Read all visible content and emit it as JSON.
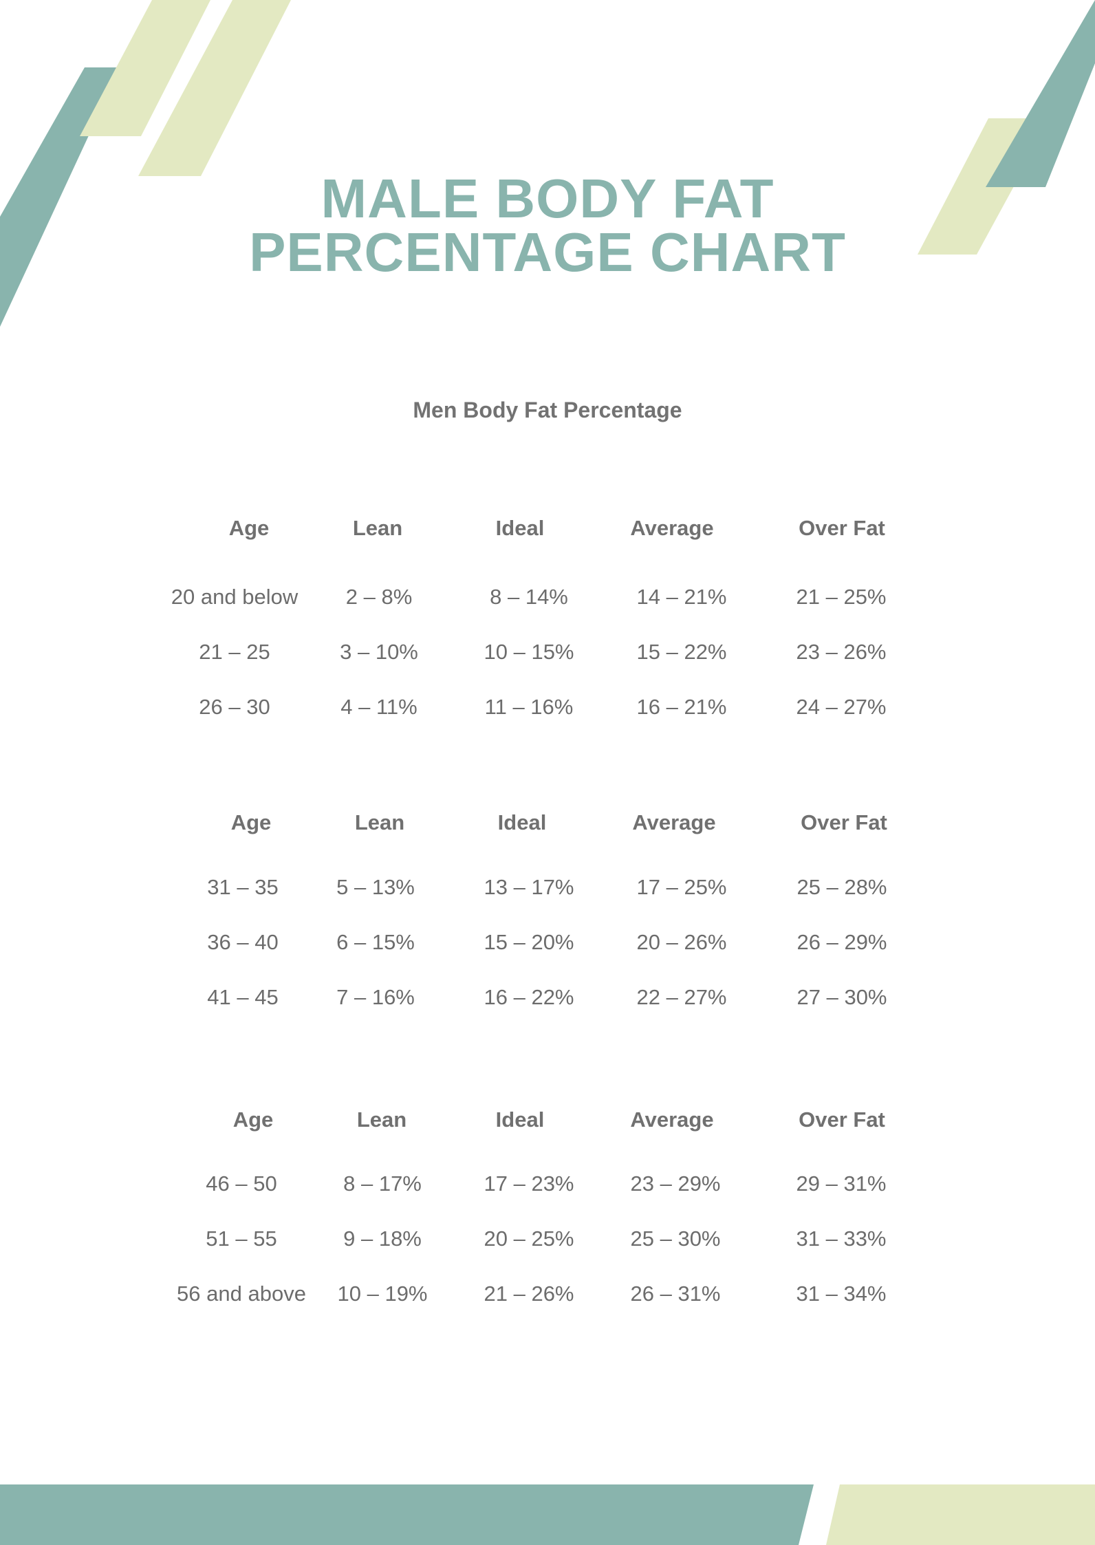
{
  "document": {
    "title_line1": "MALE BODY FAT",
    "title_line2": "PERCENTAGE CHART",
    "subtitle": "Men Body Fat Percentage"
  },
  "colors": {
    "teal": "#89b4ad",
    "light_green": "#e3e9c2",
    "text_gray": "#707070"
  },
  "tables": [
    {
      "headers": [
        "Age",
        "Lean",
        "Ideal",
        "Average",
        "Over Fat"
      ],
      "rows": [
        [
          "20 and below",
          "2 – 8%",
          "8 – 14%",
          "14 – 21%",
          "21 – 25%"
        ],
        [
          "21 – 25",
          "3 – 10%",
          "10 – 15%",
          "15 – 22%",
          "23 – 26%"
        ],
        [
          "26 – 30",
          "4 – 11%",
          "11 – 16%",
          "16 – 21%",
          "24 – 27%"
        ]
      ]
    },
    {
      "headers": [
        "Age",
        "Lean",
        "Ideal",
        "Average",
        "Over Fat"
      ],
      "rows": [
        [
          "31 – 35",
          "5 – 13%",
          "13 – 17%",
          "17 – 25%",
          "25 – 28%"
        ],
        [
          "36 – 40",
          "6 – 15%",
          "15 – 20%",
          "20 – 26%",
          "26 – 29%"
        ],
        [
          "41 – 45",
          "7 – 16%",
          "16 – 22%",
          "22 – 27%",
          "27 – 30%"
        ]
      ]
    },
    {
      "headers": [
        "Age",
        "Lean",
        "Ideal",
        "Average",
        "Over Fat"
      ],
      "rows": [
        [
          "46 – 50",
          "8 – 17%",
          "17 – 23%",
          "23 – 29%",
          "29 – 31%"
        ],
        [
          "51 – 55",
          "9 – 18%",
          "20 – 25%",
          "25 – 30%",
          "31 – 33%"
        ],
        [
          "56 and above",
          "10 – 19%",
          "21 – 26%",
          "26 – 31%",
          "31 – 34%"
        ]
      ]
    }
  ]
}
